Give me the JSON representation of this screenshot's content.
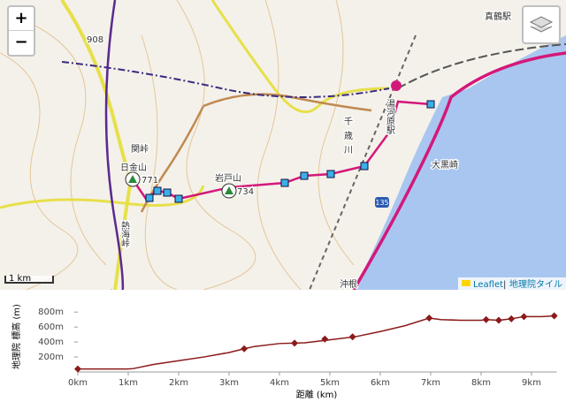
{
  "map": {
    "zoom_in": "+",
    "zoom_out": "−",
    "labels": [
      "真鶴駅",
      "湯河原駅",
      "大黒崎",
      "岩戸山",
      "日金山",
      "関峠",
      "熱海峠",
      "千歳川",
      "沖根",
      "908",
      "734",
      "771",
      "135"
    ],
    "scale": "1 km",
    "attribution": {
      "leaflet": "Leaflet",
      "separator": "|",
      "tiles": "地理院タイル"
    }
  },
  "chart_data": {
    "type": "line",
    "ylabel": "地理院 標高 (m)",
    "xlabel": "距離 (km)",
    "color": "#8b1a1a",
    "xlim": [
      0,
      9.5
    ],
    "xticks": [
      {
        "value": 0,
        "label": "0km"
      },
      {
        "value": 1,
        "label": "1km"
      },
      {
        "value": 2,
        "label": "2km"
      },
      {
        "value": 3,
        "label": "3km"
      },
      {
        "value": 4,
        "label": "4km"
      },
      {
        "value": 5,
        "label": "5km"
      },
      {
        "value": 6,
        "label": "6km"
      },
      {
        "value": 7,
        "label": "7km"
      },
      {
        "value": 8,
        "label": "8km"
      },
      {
        "value": 9,
        "label": "9km"
      }
    ],
    "ylim": [
      0,
      850
    ],
    "yticks": [
      {
        "value": 200,
        "label": "200m"
      },
      {
        "value": 400,
        "label": "400m"
      },
      {
        "value": 600,
        "label": "600m"
      },
      {
        "value": 800,
        "label": "800m"
      }
    ],
    "x": [
      0,
      1,
      1.1,
      1.5,
      2,
      2.5,
      3,
      3.3,
      3.5,
      4,
      4.5,
      5,
      5.5,
      6,
      6.5,
      6.97,
      7.2,
      7.6,
      8,
      8.1,
      8.35,
      8.6,
      8.85,
      9.2,
      9.45
    ],
    "values": [
      40,
      40,
      45,
      100,
      150,
      200,
      260,
      310,
      340,
      380,
      390,
      430,
      470,
      540,
      620,
      720,
      700,
      690,
      690,
      700,
      690,
      710,
      740,
      740,
      750
    ],
    "markers": {
      "x": [
        0,
        3.3,
        4.3,
        4.9,
        5.45,
        6.97,
        8.1,
        8.35,
        8.6,
        8.85,
        9.45
      ],
      "values": [
        40,
        310,
        385,
        440,
        470,
        720,
        700,
        690,
        710,
        740,
        750
      ]
    }
  }
}
